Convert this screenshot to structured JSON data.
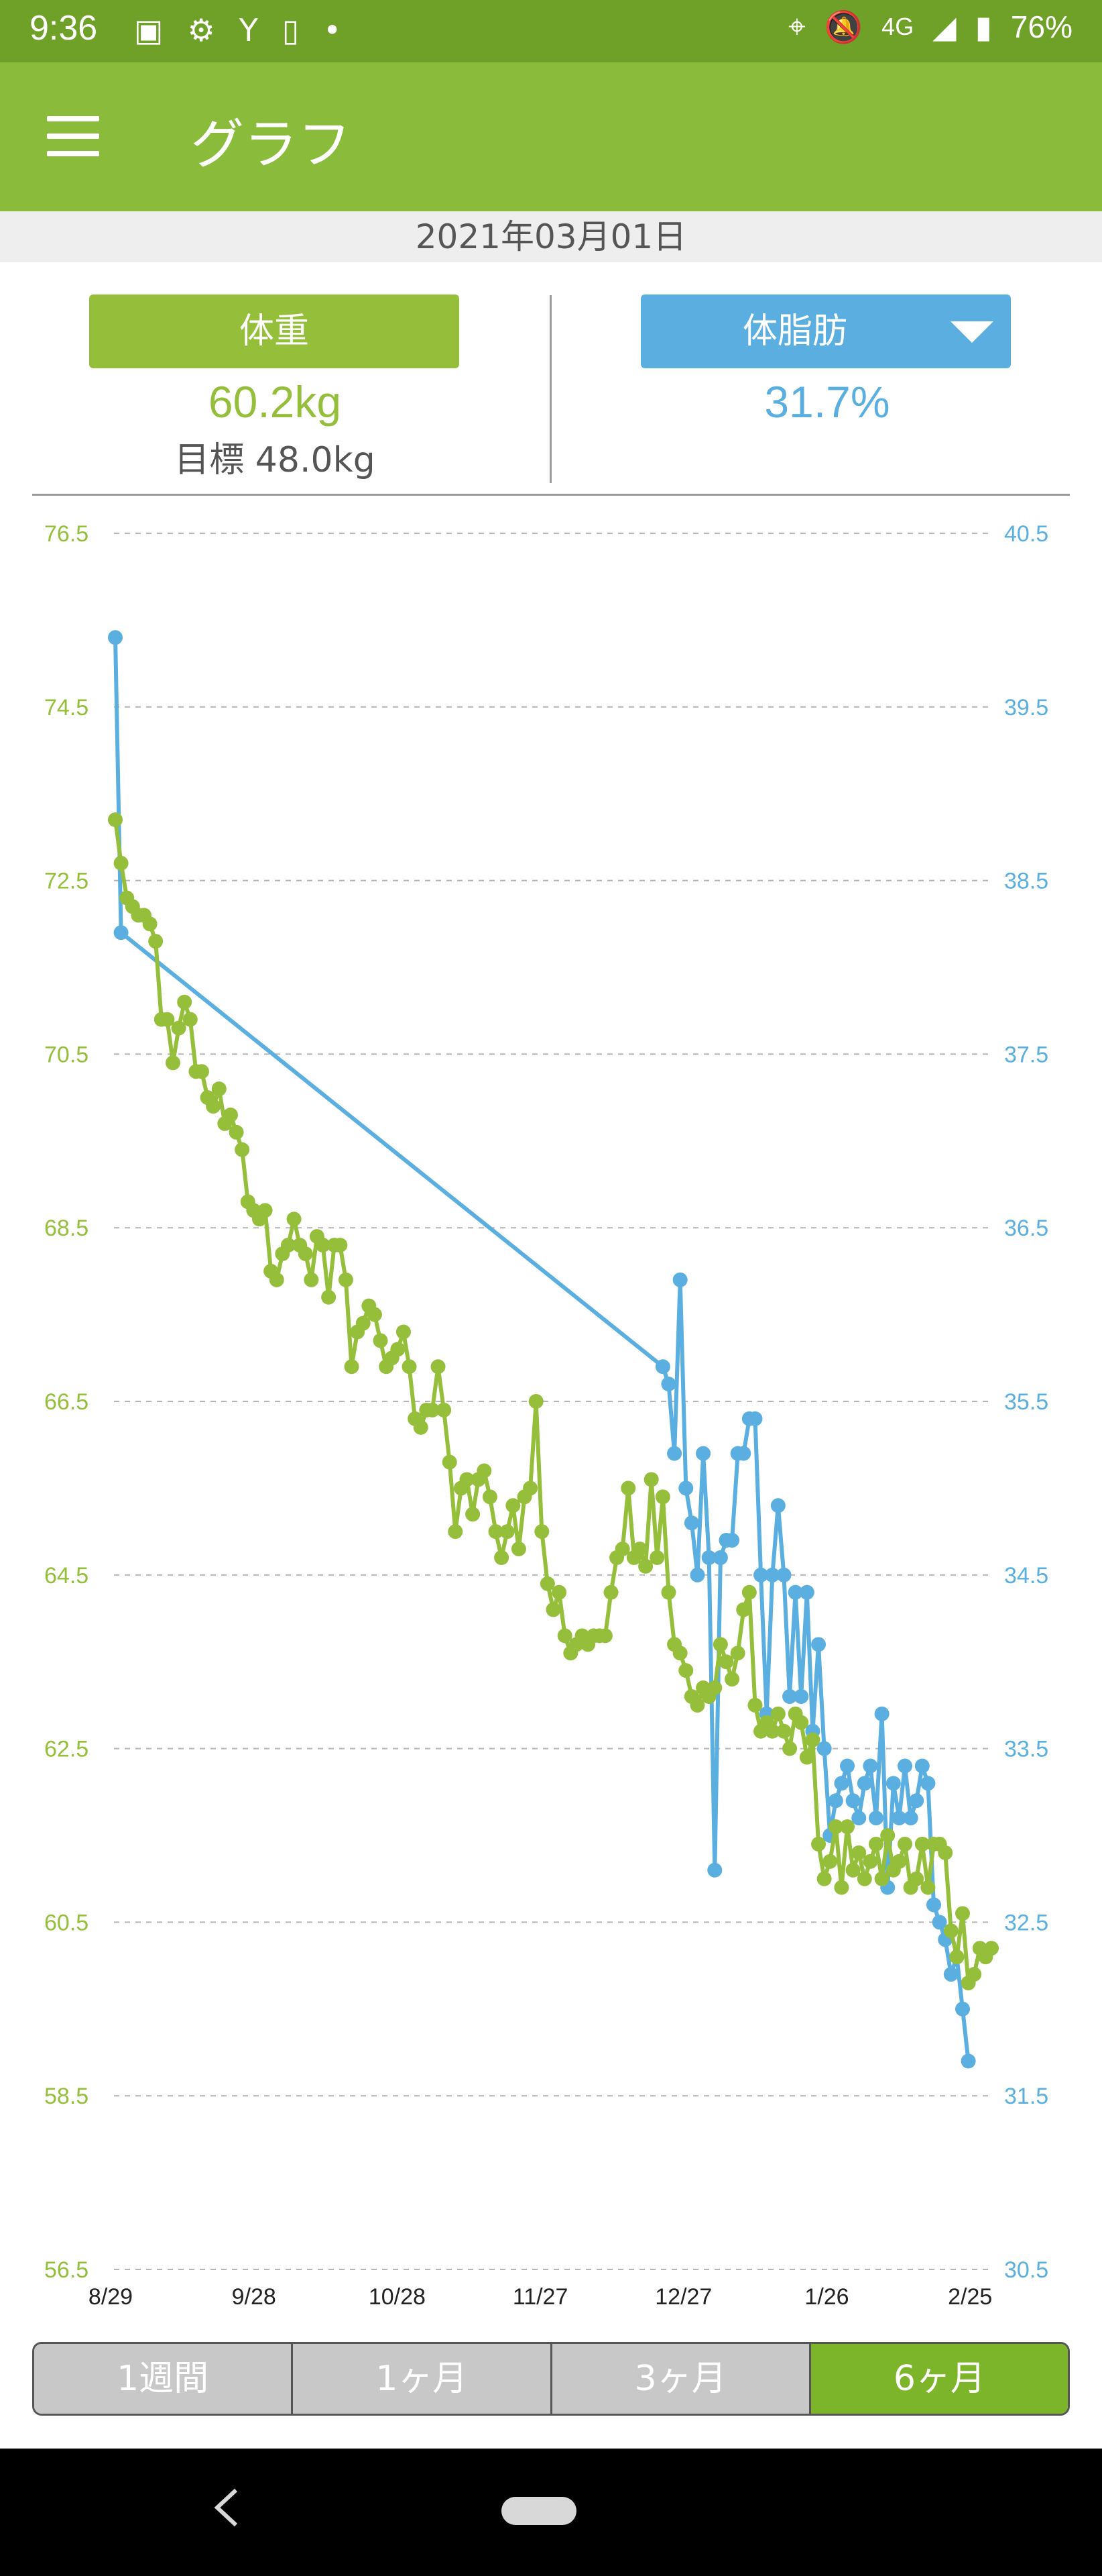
{
  "status": {
    "time": "9:36",
    "network": "4G",
    "battery": "76%"
  },
  "app": {
    "title": "グラフ"
  },
  "date": "2021年03月01日",
  "weight": {
    "button": "体重",
    "value": "60.2kg",
    "goal": "目標 48.0kg",
    "color": "#95bf3a"
  },
  "bodyfat": {
    "button": "体脂肪",
    "value": "31.7%",
    "color": "#5aafe0"
  },
  "tabs": [
    {
      "label": "1週間",
      "active": false
    },
    {
      "label": "1ヶ月",
      "active": false
    },
    {
      "label": "3ヶ月",
      "active": false
    },
    {
      "label": "6ヶ月",
      "active": true
    }
  ],
  "chart_data": {
    "type": "line",
    "x_ticks": [
      "8/29",
      "9/28",
      "10/28",
      "11/27",
      "12/27",
      "1/26",
      "2/25"
    ],
    "y_left": {
      "ticks": [
        76.5,
        74.5,
        72.5,
        70.5,
        68.5,
        66.5,
        64.5,
        62.5,
        60.5,
        58.5,
        56.5
      ],
      "range": [
        56.5,
        76.5
      ],
      "color": "#95bf3a"
    },
    "y_right": {
      "ticks": [
        40.5,
        39.5,
        38.5,
        37.5,
        36.5,
        35.5,
        34.5,
        33.5,
        32.5,
        31.5,
        30.5
      ],
      "range": [
        30.5,
        40.5
      ],
      "color": "#5aafe0"
    },
    "grid": "horizontal-dashed",
    "series": [
      {
        "axis": "left",
        "color": "#95bf3a",
        "points": [
          [
            0,
            73.2
          ],
          [
            1,
            72.7
          ],
          [
            2,
            72.3
          ],
          [
            3,
            72.2
          ],
          [
            4,
            72.1
          ],
          [
            5,
            72.1
          ],
          [
            6,
            72.0
          ],
          [
            7,
            71.8
          ],
          [
            8,
            70.9
          ],
          [
            9,
            70.9
          ],
          [
            10,
            70.4
          ],
          [
            11,
            70.8
          ],
          [
            12,
            71.1
          ],
          [
            13,
            70.9
          ],
          [
            14,
            70.3
          ],
          [
            15,
            70.3
          ],
          [
            16,
            70.0
          ],
          [
            17,
            69.9
          ],
          [
            18,
            70.1
          ],
          [
            19,
            69.7
          ],
          [
            20,
            69.8
          ],
          [
            21,
            69.6
          ],
          [
            22,
            69.4
          ],
          [
            23,
            68.8
          ],
          [
            24,
            68.7
          ],
          [
            25,
            68.6
          ],
          [
            26,
            68.7
          ],
          [
            27,
            68.0
          ],
          [
            28,
            67.9
          ],
          [
            29,
            68.2
          ],
          [
            30,
            68.3
          ],
          [
            31,
            68.6
          ],
          [
            32,
            68.3
          ],
          [
            33,
            68.2
          ],
          [
            34,
            67.9
          ],
          [
            35,
            68.4
          ],
          [
            36,
            68.3
          ],
          [
            37,
            67.7
          ],
          [
            38,
            68.3
          ],
          [
            39,
            68.3
          ],
          [
            40,
            67.9
          ],
          [
            41,
            66.9
          ],
          [
            42,
            67.3
          ],
          [
            43,
            67.4
          ],
          [
            44,
            67.6
          ],
          [
            45,
            67.5
          ],
          [
            46,
            67.2
          ],
          [
            47,
            66.9
          ],
          [
            48,
            67.0
          ],
          [
            49,
            67.1
          ],
          [
            50,
            67.3
          ],
          [
            51,
            66.9
          ],
          [
            52,
            66.3
          ],
          [
            53,
            66.2
          ],
          [
            54,
            66.4
          ],
          [
            55,
            66.4
          ],
          [
            56,
            66.9
          ],
          [
            57,
            66.4
          ],
          [
            58,
            65.8
          ],
          [
            59,
            65.0
          ],
          [
            60,
            65.5
          ],
          [
            61,
            65.6
          ],
          [
            62,
            65.2
          ],
          [
            63,
            65.6
          ],
          [
            64,
            65.7
          ],
          [
            65,
            65.4
          ],
          [
            66,
            65.0
          ],
          [
            67,
            64.7
          ],
          [
            68,
            65.0
          ],
          [
            69,
            65.3
          ],
          [
            70,
            64.8
          ],
          [
            71,
            65.4
          ],
          [
            72,
            65.5
          ],
          [
            73,
            66.5
          ],
          [
            74,
            65.0
          ],
          [
            75,
            64.4
          ],
          [
            76,
            64.1
          ],
          [
            77,
            64.3
          ],
          [
            78,
            63.8
          ],
          [
            79,
            63.6
          ],
          [
            80,
            63.7
          ],
          [
            81,
            63.8
          ],
          [
            82,
            63.7
          ],
          [
            83,
            63.8
          ],
          [
            84,
            63.8
          ],
          [
            85,
            63.8
          ],
          [
            86,
            64.3
          ],
          [
            87,
            64.7
          ],
          [
            88,
            64.8
          ],
          [
            89,
            65.5
          ],
          [
            90,
            64.7
          ],
          [
            91,
            64.8
          ],
          [
            92,
            64.6
          ],
          [
            93,
            65.6
          ],
          [
            94,
            64.7
          ],
          [
            95,
            65.4
          ],
          [
            96,
            64.3
          ],
          [
            97,
            63.7
          ],
          [
            98,
            63.6
          ],
          [
            99,
            63.4
          ],
          [
            100,
            63.1
          ],
          [
            101,
            63.0
          ],
          [
            102,
            63.2
          ],
          [
            103,
            63.1
          ],
          [
            104,
            63.2
          ],
          [
            105,
            63.7
          ],
          [
            106,
            63.5
          ],
          [
            107,
            63.3
          ],
          [
            108,
            63.6
          ],
          [
            109,
            64.1
          ],
          [
            110,
            64.3
          ],
          [
            111,
            63.0
          ],
          [
            112,
            62.7
          ],
          [
            113,
            62.8
          ],
          [
            114,
            62.7
          ],
          [
            115,
            62.9
          ],
          [
            116,
            62.7
          ],
          [
            117,
            62.5
          ],
          [
            118,
            62.9
          ],
          [
            119,
            62.8
          ],
          [
            120,
            62.4
          ],
          [
            121,
            62.6
          ],
          [
            122,
            61.4
          ],
          [
            123,
            61.0
          ],
          [
            124,
            61.2
          ],
          [
            125,
            61.6
          ],
          [
            126,
            60.9
          ],
          [
            127,
            61.6
          ],
          [
            128,
            61.1
          ],
          [
            129,
            61.3
          ],
          [
            130,
            61.0
          ],
          [
            131,
            61.2
          ],
          [
            132,
            61.4
          ],
          [
            133,
            61.0
          ],
          [
            134,
            61.5
          ],
          [
            135,
            61.1
          ],
          [
            136,
            61.2
          ],
          [
            137,
            61.4
          ],
          [
            138,
            60.9
          ],
          [
            139,
            61.0
          ],
          [
            140,
            61.4
          ],
          [
            141,
            60.9
          ],
          [
            142,
            61.4
          ],
          [
            143,
            61.4
          ],
          [
            144,
            61.3
          ],
          [
            145,
            60.4
          ],
          [
            146,
            60.1
          ],
          [
            147,
            60.6
          ],
          [
            148,
            59.8
          ],
          [
            149,
            59.9
          ],
          [
            150,
            60.2
          ],
          [
            151,
            60.1
          ],
          [
            152,
            60.2
          ]
        ]
      },
      {
        "axis": "right",
        "color": "#5aafe0",
        "points": [
          [
            0,
            39.9
          ],
          [
            1,
            38.2
          ],
          [
            95,
            35.7
          ],
          [
            96,
            35.6
          ],
          [
            97,
            35.2
          ],
          [
            98,
            36.2
          ],
          [
            99,
            35.0
          ],
          [
            100,
            34.8
          ],
          [
            101,
            34.5
          ],
          [
            102,
            35.2
          ],
          [
            103,
            34.6
          ],
          [
            104,
            32.8
          ],
          [
            105,
            34.6
          ],
          [
            106,
            34.7
          ],
          [
            107,
            34.7
          ],
          [
            108,
            35.2
          ],
          [
            109,
            35.2
          ],
          [
            110,
            35.4
          ],
          [
            111,
            35.4
          ],
          [
            112,
            34.5
          ],
          [
            113,
            33.7
          ],
          [
            114,
            34.5
          ],
          [
            115,
            34.9
          ],
          [
            116,
            34.5
          ],
          [
            117,
            33.8
          ],
          [
            118,
            34.4
          ],
          [
            119,
            33.8
          ],
          [
            120,
            34.4
          ],
          [
            121,
            33.6
          ],
          [
            122,
            34.1
          ],
          [
            123,
            33.5
          ],
          [
            124,
            33.0
          ],
          [
            125,
            33.2
          ],
          [
            126,
            33.3
          ],
          [
            127,
            33.4
          ],
          [
            128,
            33.2
          ],
          [
            129,
            33.1
          ],
          [
            130,
            33.3
          ],
          [
            131,
            33.4
          ],
          [
            132,
            33.1
          ],
          [
            133,
            33.7
          ],
          [
            134,
            32.7
          ],
          [
            135,
            33.3
          ],
          [
            136,
            33.1
          ],
          [
            137,
            33.4
          ],
          [
            138,
            33.1
          ],
          [
            139,
            33.2
          ],
          [
            140,
            33.4
          ],
          [
            141,
            33.3
          ],
          [
            142,
            32.6
          ],
          [
            143,
            32.5
          ],
          [
            144,
            32.4
          ],
          [
            145,
            32.2
          ],
          [
            146,
            32.3
          ],
          [
            147,
            32.0
          ],
          [
            148,
            31.7
          ]
        ]
      }
    ]
  }
}
